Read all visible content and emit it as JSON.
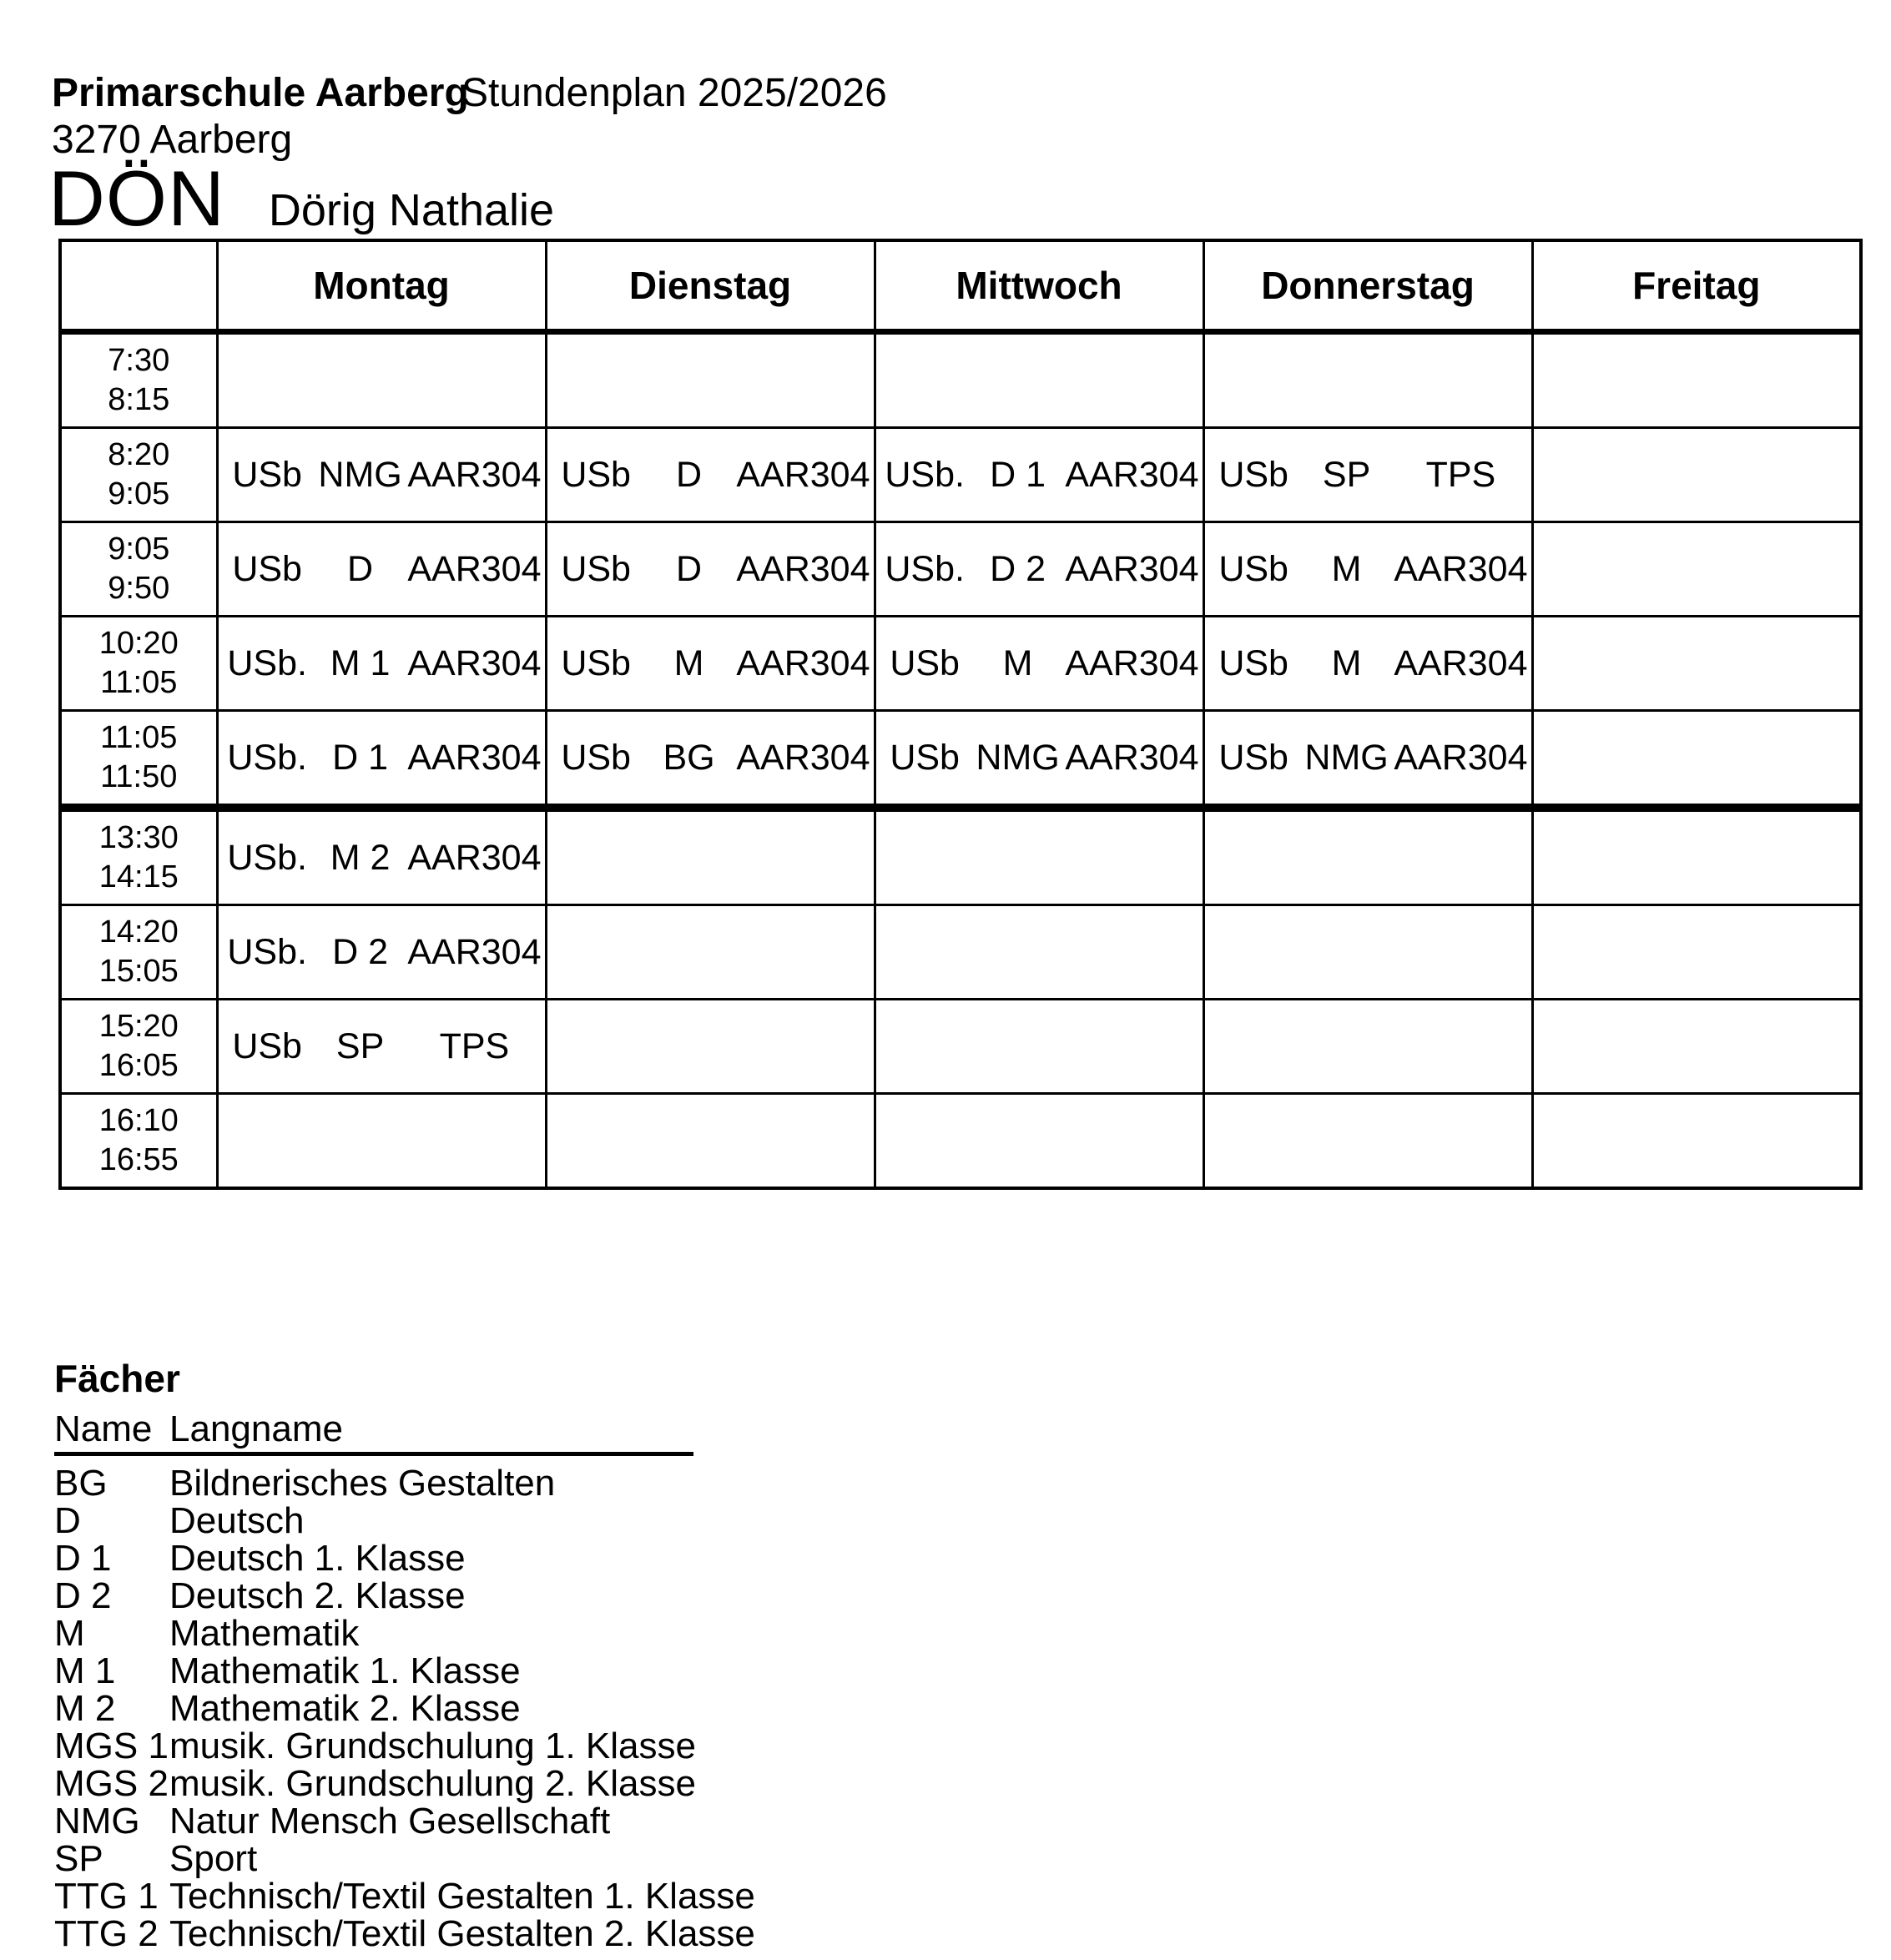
{
  "header": {
    "school_name": "Primarschule Aarberg",
    "plan_title": "Stundenplan 2025/2026",
    "school_city": "3270 Aarberg",
    "teacher_code": "DÖN",
    "teacher_name": "Dörig Nathalie"
  },
  "timetable": {
    "days": [
      "Montag",
      "Dienstag",
      "Mittwoch",
      "Donnerstag",
      "Freitag"
    ],
    "rows": [
      {
        "start": "7:30",
        "end": "8:15",
        "cells": [
          null,
          null,
          null,
          null,
          null
        ]
      },
      {
        "start": "8:20",
        "end": "9:05",
        "cells": [
          {
            "cls": "USb",
            "subj": "NMG",
            "room": "AAR304"
          },
          {
            "cls": "USb",
            "subj": "D",
            "room": "AAR304"
          },
          {
            "cls": "USb.",
            "subj": "D 1",
            "room": "AAR304"
          },
          {
            "cls": "USb",
            "subj": "SP",
            "room": "TPS"
          },
          null
        ]
      },
      {
        "start": "9:05",
        "end": "9:50",
        "cells": [
          {
            "cls": "USb",
            "subj": "D",
            "room": "AAR304"
          },
          {
            "cls": "USb",
            "subj": "D",
            "room": "AAR304"
          },
          {
            "cls": "USb.",
            "subj": "D 2",
            "room": "AAR304"
          },
          {
            "cls": "USb",
            "subj": "M",
            "room": "AAR304"
          },
          null
        ]
      },
      {
        "start": "10:20",
        "end": "11:05",
        "cells": [
          {
            "cls": "USb.",
            "subj": "M 1",
            "room": "AAR304"
          },
          {
            "cls": "USb",
            "subj": "M",
            "room": "AAR304"
          },
          {
            "cls": "USb",
            "subj": "M",
            "room": "AAR304"
          },
          {
            "cls": "USb",
            "subj": "M",
            "room": "AAR304"
          },
          null
        ]
      },
      {
        "start": "11:05",
        "end": "11:50",
        "cells": [
          {
            "cls": "USb.",
            "subj": "D 1",
            "room": "AAR304"
          },
          {
            "cls": "USb",
            "subj": "BG",
            "room": "AAR304"
          },
          {
            "cls": "USb",
            "subj": "NMG",
            "room": "AAR304"
          },
          {
            "cls": "USb",
            "subj": "NMG",
            "room": "AAR304"
          },
          null
        ]
      },
      {
        "start": "13:30",
        "end": "14:15",
        "cells": [
          {
            "cls": "USb.",
            "subj": "M 2",
            "room": "AAR304"
          },
          null,
          null,
          null,
          null
        ]
      },
      {
        "start": "14:20",
        "end": "15:05",
        "cells": [
          {
            "cls": "USb.",
            "subj": "D 2",
            "room": "AAR304"
          },
          null,
          null,
          null,
          null
        ]
      },
      {
        "start": "15:20",
        "end": "16:05",
        "cells": [
          {
            "cls": "USb",
            "subj": "SP",
            "room": "TPS"
          },
          null,
          null,
          null,
          null
        ]
      },
      {
        "start": "16:10",
        "end": "16:55",
        "cells": [
          null,
          null,
          null,
          null,
          null
        ]
      }
    ]
  },
  "legend": {
    "title": "Fächer",
    "col_name": "Name",
    "col_longname": "Langname",
    "items": [
      {
        "name": "BG",
        "longname": "Bildnerisches Gestalten"
      },
      {
        "name": "D",
        "longname": "Deutsch"
      },
      {
        "name": "D 1",
        "longname": "Deutsch 1. Klasse"
      },
      {
        "name": "D 2",
        "longname": "Deutsch 2. Klasse"
      },
      {
        "name": "M",
        "longname": "Mathematik"
      },
      {
        "name": "M 1",
        "longname": "Mathematik 1. Klasse"
      },
      {
        "name": "M 2",
        "longname": "Mathematik 2. Klasse"
      },
      {
        "name": "MGS 1",
        "longname": "musik. Grundschulung 1. Klasse"
      },
      {
        "name": "MGS 2",
        "longname": "musik. Grundschulung 2. Klasse"
      },
      {
        "name": "NMG",
        "longname": "Natur Mensch Gesellschaft"
      },
      {
        "name": "SP",
        "longname": "Sport"
      },
      {
        "name": "TTG 1",
        "longname": "Technisch/Textil Gestalten 1. Klasse"
      },
      {
        "name": "TTG 2",
        "longname": "Technisch/Textil Gestalten 2. Klasse"
      }
    ]
  }
}
